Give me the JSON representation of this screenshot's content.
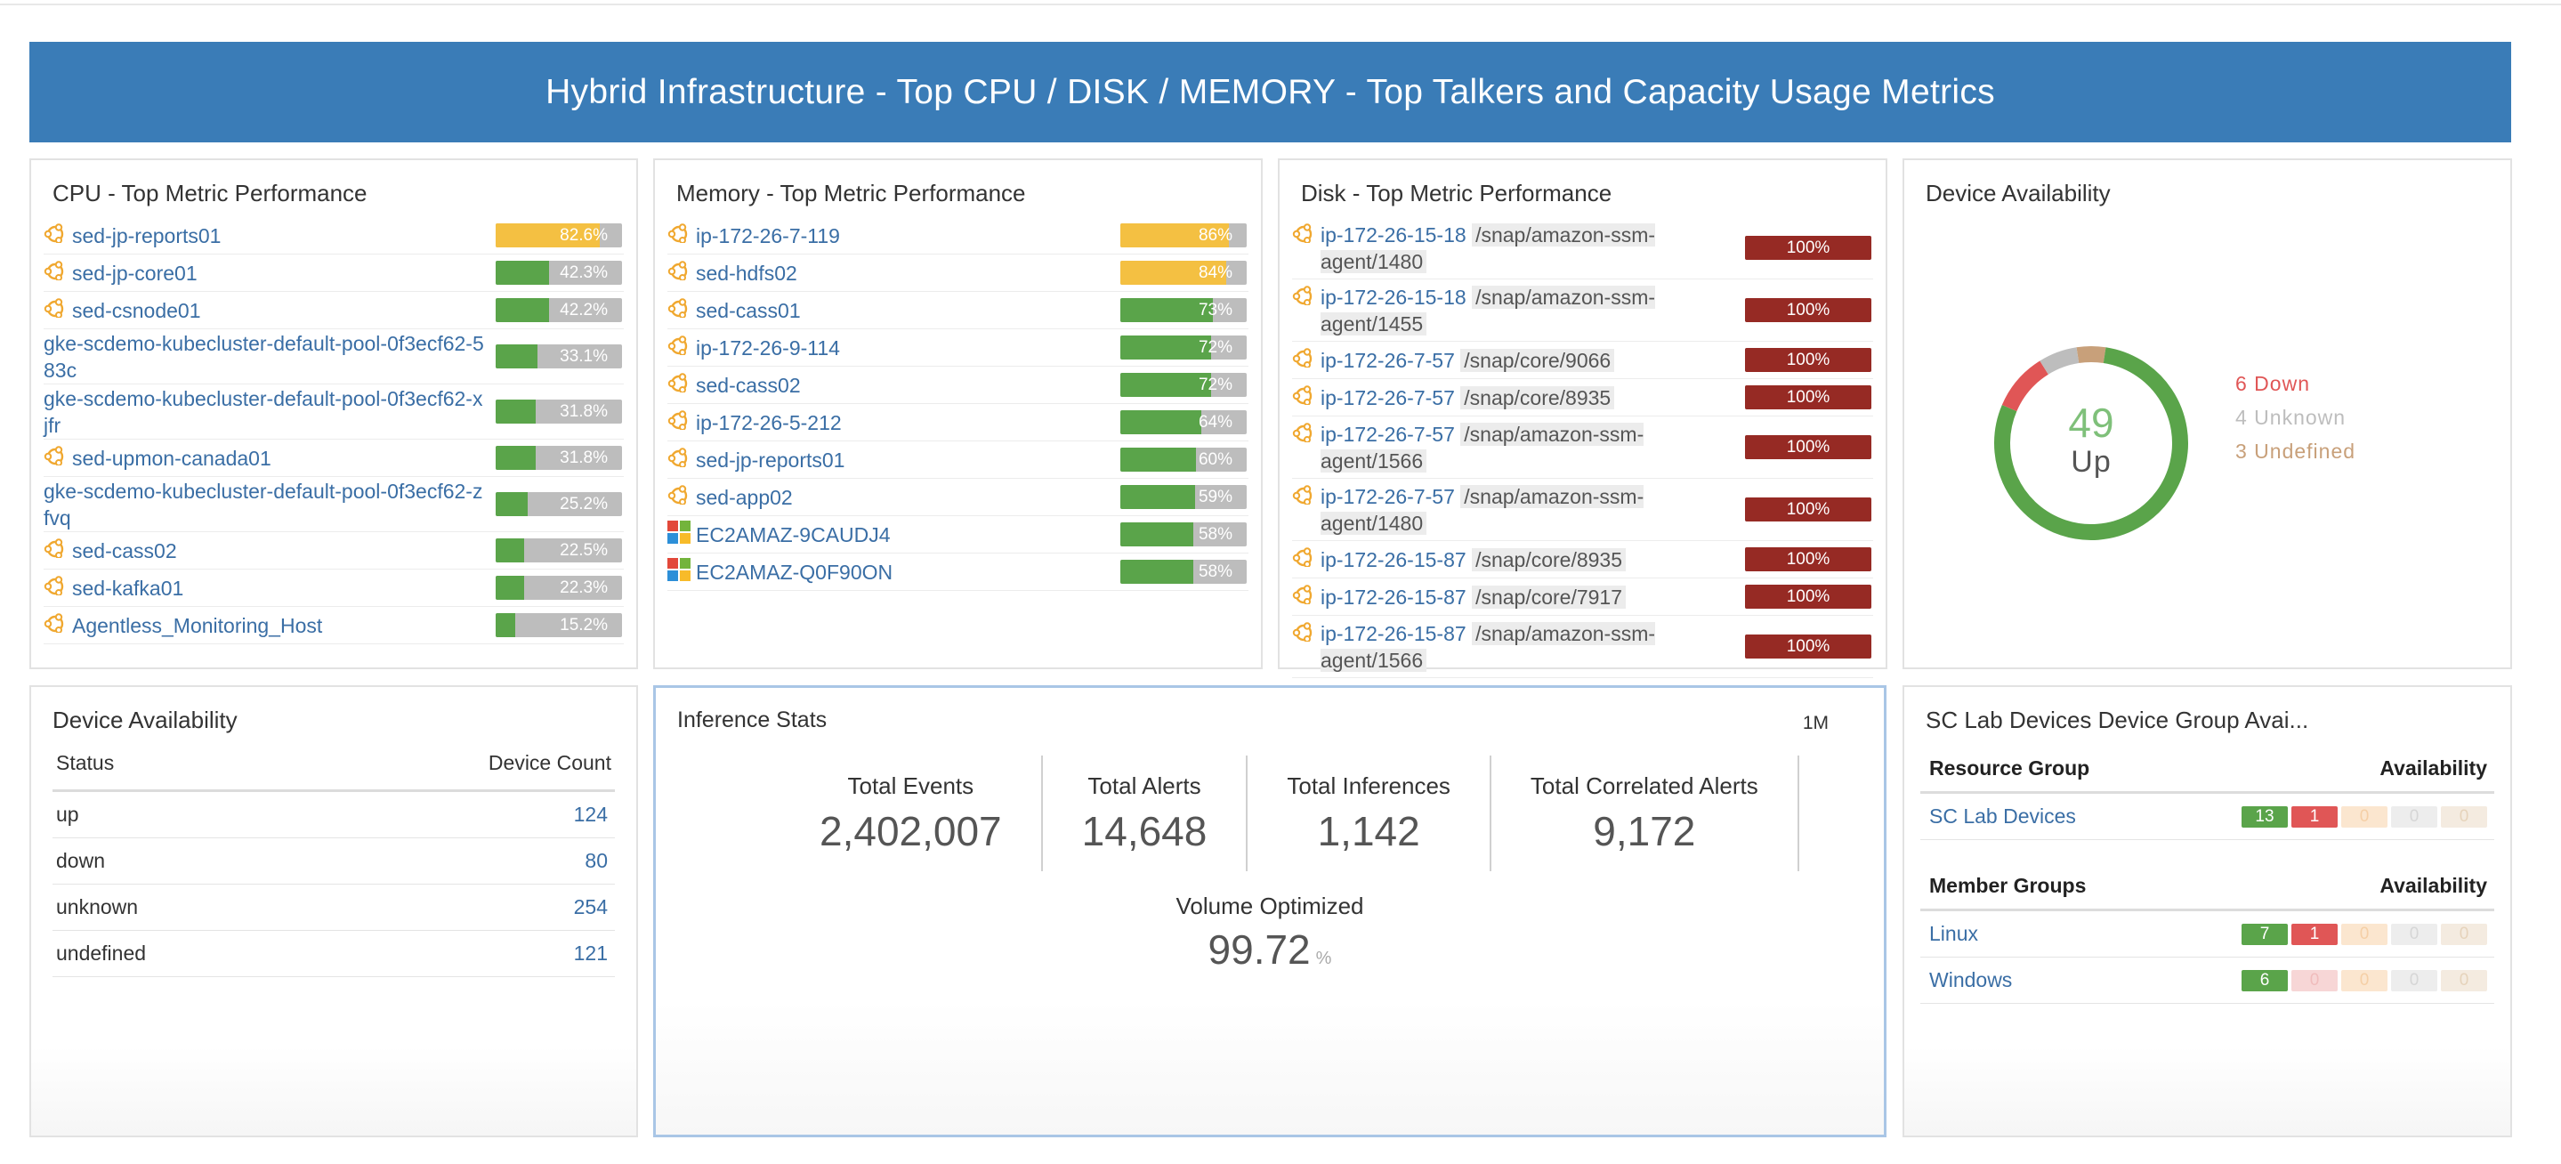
{
  "banner": {
    "title": "Hybrid Infrastructure - Top CPU / DISK / MEMORY - Top Talkers and Capacity Usage Metrics"
  },
  "colors": {
    "banner": "#3a7cb7",
    "bar_green": "#5aa44a",
    "bar_yellow": "#f4c042",
    "bar_red": "#962a24",
    "down": "#e05656",
    "unknown": "#bdbdbd",
    "undefined": "#c8a07a",
    "up": "#5aa44a"
  },
  "cpu": {
    "title": "CPU - Top Metric Performance",
    "rows": [
      {
        "name": "sed-jp-reports01",
        "icon": "linux-icon",
        "value": 82.6,
        "pct": "82.6%",
        "color": "yellow"
      },
      {
        "name": "sed-jp-core01",
        "icon": "linux-icon",
        "value": 42.3,
        "pct": "42.3%",
        "color": "green"
      },
      {
        "name": "sed-csnode01",
        "icon": "linux-icon",
        "value": 42.2,
        "pct": "42.2%",
        "color": "green"
      },
      {
        "name": "gke-scdemo-kubecluster-default-pool-0f3ecf62-583c",
        "icon": "",
        "value": 33.1,
        "pct": "33.1%",
        "color": "green"
      },
      {
        "name": "gke-scdemo-kubecluster-default-pool-0f3ecf62-xjfr",
        "icon": "",
        "value": 31.8,
        "pct": "31.8%",
        "color": "green"
      },
      {
        "name": "sed-upmon-canada01",
        "icon": "linux-icon",
        "value": 31.8,
        "pct": "31.8%",
        "color": "green"
      },
      {
        "name": "gke-scdemo-kubecluster-default-pool-0f3ecf62-zfvq",
        "icon": "",
        "value": 25.2,
        "pct": "25.2%",
        "color": "green"
      },
      {
        "name": "sed-cass02",
        "icon": "linux-icon",
        "value": 22.5,
        "pct": "22.5%",
        "color": "green"
      },
      {
        "name": "sed-kafka01",
        "icon": "linux-icon",
        "value": 22.3,
        "pct": "22.3%",
        "color": "green"
      },
      {
        "name": "Agentless_Monitoring_Host",
        "icon": "linux-icon",
        "value": 15.2,
        "pct": "15.2%",
        "color": "green"
      }
    ]
  },
  "memory": {
    "title": "Memory - Top Metric Performance",
    "rows": [
      {
        "name": "ip-172-26-7-119",
        "icon": "linux-icon",
        "value": 86,
        "pct": "86%",
        "color": "yellow"
      },
      {
        "name": "sed-hdfs02",
        "icon": "linux-icon",
        "value": 84,
        "pct": "84%",
        "color": "yellow"
      },
      {
        "name": "sed-cass01",
        "icon": "linux-icon",
        "value": 73,
        "pct": "73%",
        "color": "green"
      },
      {
        "name": "ip-172-26-9-114",
        "icon": "linux-icon",
        "value": 72,
        "pct": "72%",
        "color": "green"
      },
      {
        "name": "sed-cass02",
        "icon": "linux-icon",
        "value": 72,
        "pct": "72%",
        "color": "green"
      },
      {
        "name": "ip-172-26-5-212",
        "icon": "linux-icon",
        "value": 64,
        "pct": "64%",
        "color": "green"
      },
      {
        "name": "sed-jp-reports01",
        "icon": "linux-icon",
        "value": 60,
        "pct": "60%",
        "color": "green"
      },
      {
        "name": "sed-app02",
        "icon": "linux-icon",
        "value": 59,
        "pct": "59%",
        "color": "green"
      },
      {
        "name": "EC2AMAZ-9CAUDJ4",
        "icon": "windows-icon",
        "value": 58,
        "pct": "58%",
        "color": "green"
      },
      {
        "name": "EC2AMAZ-Q0F90ON",
        "icon": "windows-icon",
        "value": 58,
        "pct": "58%",
        "color": "green"
      }
    ]
  },
  "disk": {
    "title": "Disk - Top Metric Performance",
    "rows": [
      {
        "host": "ip-172-26-15-18",
        "path": "/snap/amazon-ssm-agent/1480",
        "value": 100,
        "pct": "100%"
      },
      {
        "host": "ip-172-26-15-18",
        "path": "/snap/amazon-ssm-agent/1455",
        "value": 100,
        "pct": "100%"
      },
      {
        "host": "ip-172-26-7-57",
        "path": "/snap/core/9066",
        "value": 100,
        "pct": "100%"
      },
      {
        "host": "ip-172-26-7-57",
        "path": "/snap/core/8935",
        "value": 100,
        "pct": "100%"
      },
      {
        "host": "ip-172-26-7-57",
        "path": "/snap/amazon-ssm-agent/1566",
        "value": 100,
        "pct": "100%"
      },
      {
        "host": "ip-172-26-7-57",
        "path": "/snap/amazon-ssm-agent/1480",
        "value": 100,
        "pct": "100%"
      },
      {
        "host": "ip-172-26-15-87",
        "path": "/snap/core/8935",
        "value": 100,
        "pct": "100%"
      },
      {
        "host": "ip-172-26-15-87",
        "path": "/snap/core/7917",
        "value": 100,
        "pct": "100%"
      },
      {
        "host": "ip-172-26-15-87",
        "path": "/snap/amazon-ssm-agent/1566",
        "value": 100,
        "pct": "100%"
      }
    ]
  },
  "availability": {
    "title": "Device Availability",
    "up_count": "49",
    "up_label": "Up",
    "down": 6,
    "unknown": 4,
    "undefined": 3,
    "up": 49,
    "legend": {
      "down": "6 Down",
      "unknown": "4 Unknown",
      "undefined": "3 Undefined"
    }
  },
  "device_table": {
    "title": "Device Availability",
    "col_status": "Status",
    "col_count": "Device Count",
    "rows": [
      {
        "status": "up",
        "count": "124"
      },
      {
        "status": "down",
        "count": "80"
      },
      {
        "status": "unknown",
        "count": "254"
      },
      {
        "status": "undefined",
        "count": "121"
      }
    ]
  },
  "inference": {
    "title": "Inference Stats",
    "period": "1M",
    "stats": [
      {
        "label": "Total Events",
        "value": "2,402,007"
      },
      {
        "label": "Total Alerts",
        "value": "14,648"
      },
      {
        "label": "Total Inferences",
        "value": "1,142"
      },
      {
        "label": "Total Correlated Alerts",
        "value": "9,172"
      }
    ],
    "volume_label": "Volume Optimized",
    "volume_value": "99.72",
    "volume_unit": "%"
  },
  "sclab": {
    "title": "SC Lab Devices Device Group Avai...",
    "resource_header": "Resource Group",
    "availability_header": "Availability",
    "resource_rows": [
      {
        "name": "SC Lab Devices",
        "counts": [
          "13",
          "1",
          "0",
          "0",
          "0"
        ]
      }
    ],
    "member_header": "Member Groups",
    "member_availability_header": "Availability",
    "member_rows": [
      {
        "name": "Linux",
        "counts": [
          "7",
          "1",
          "0",
          "0",
          "0"
        ]
      },
      {
        "name": "Windows",
        "counts": [
          "6",
          "0",
          "0",
          "0",
          "0"
        ]
      }
    ]
  }
}
